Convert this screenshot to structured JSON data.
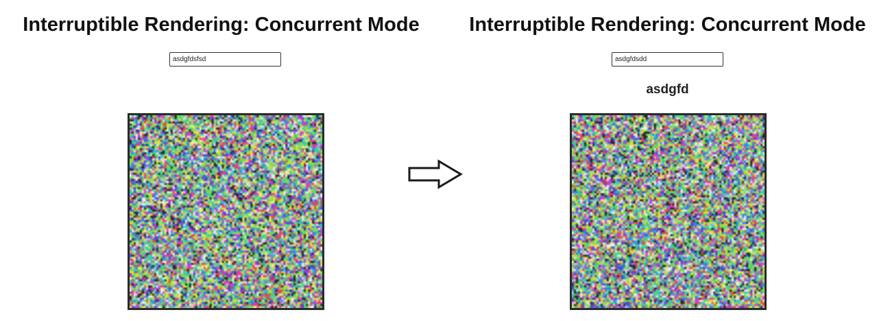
{
  "left_panel": {
    "title": "Interruptible Rendering: Concurrent Mode",
    "input_value": "asdgfdsfsd"
  },
  "right_panel": {
    "title": "Interruptible Rendering: Concurrent Mode",
    "input_value": "asdgfdsdd",
    "rendered_text": "asdgfd"
  },
  "transition_icon": "right-arrow-icon",
  "noise_palette": [
    "#e8e23a",
    "#3a7be0",
    "#d83ad8",
    "#2ec8c8",
    "#9ad84a",
    "#e04a4a",
    "#5a3ad0",
    "#f0f0f0",
    "#222222",
    "#7ae05a",
    "#c8c8c8",
    "#4ad07a"
  ]
}
